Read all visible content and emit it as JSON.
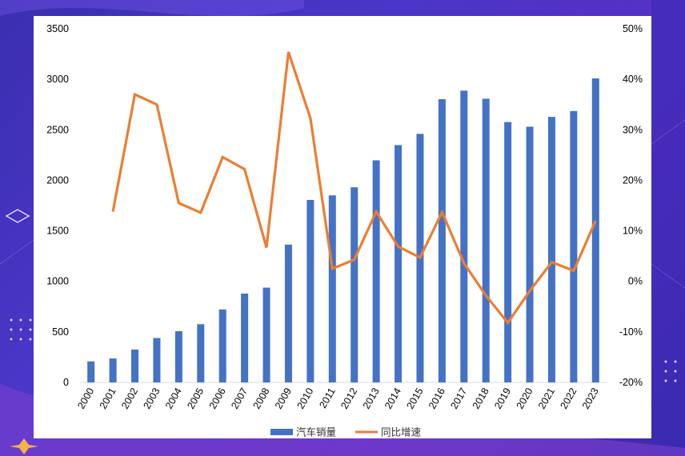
{
  "colors": {
    "bar": "#4472C4",
    "line": "#ED7D31",
    "background_primary": "#4a36c8",
    "card": "#ffffff"
  },
  "chart_data": {
    "type": "bar",
    "title": "",
    "categories": [
      "2000",
      "2001",
      "2002",
      "2003",
      "2004",
      "2005",
      "2006",
      "2007",
      "2008",
      "2009",
      "2010",
      "2011",
      "2012",
      "2013",
      "2014",
      "2015",
      "2016",
      "2017",
      "2018",
      "2019",
      "2020",
      "2021",
      "2022",
      "2023"
    ],
    "series": [
      {
        "name": "汽车销量",
        "type": "bar",
        "axis": "left",
        "values": [
          208,
          237,
          325,
          439,
          507,
          576,
          722,
          879,
          938,
          1364,
          1806,
          1851,
          1931,
          2198,
          2349,
          2460,
          2803,
          2888,
          2808,
          2577,
          2531,
          2628,
          2686,
          3009
        ]
      },
      {
        "name": "同比增速",
        "type": "line",
        "axis": "right",
        "values": [
          null,
          0.138,
          0.37,
          0.35,
          0.155,
          0.136,
          0.246,
          0.222,
          0.067,
          0.454,
          0.323,
          0.025,
          0.043,
          0.138,
          0.069,
          0.047,
          0.137,
          0.036,
          -0.028,
          -0.082,
          -0.019,
          0.038,
          0.021,
          0.12
        ]
      }
    ],
    "y_left": {
      "min": 0,
      "max": 3500,
      "ticks": [
        "0",
        "500",
        "1000",
        "1500",
        "2000",
        "2500",
        "3000",
        "3500"
      ]
    },
    "y_right": {
      "min": -0.2,
      "max": 0.5,
      "ticks": [
        "-20%",
        "-10%",
        "0%",
        "10%",
        "20%",
        "30%",
        "40%",
        "50%"
      ]
    },
    "grid": false,
    "legend_position": "bottom"
  }
}
